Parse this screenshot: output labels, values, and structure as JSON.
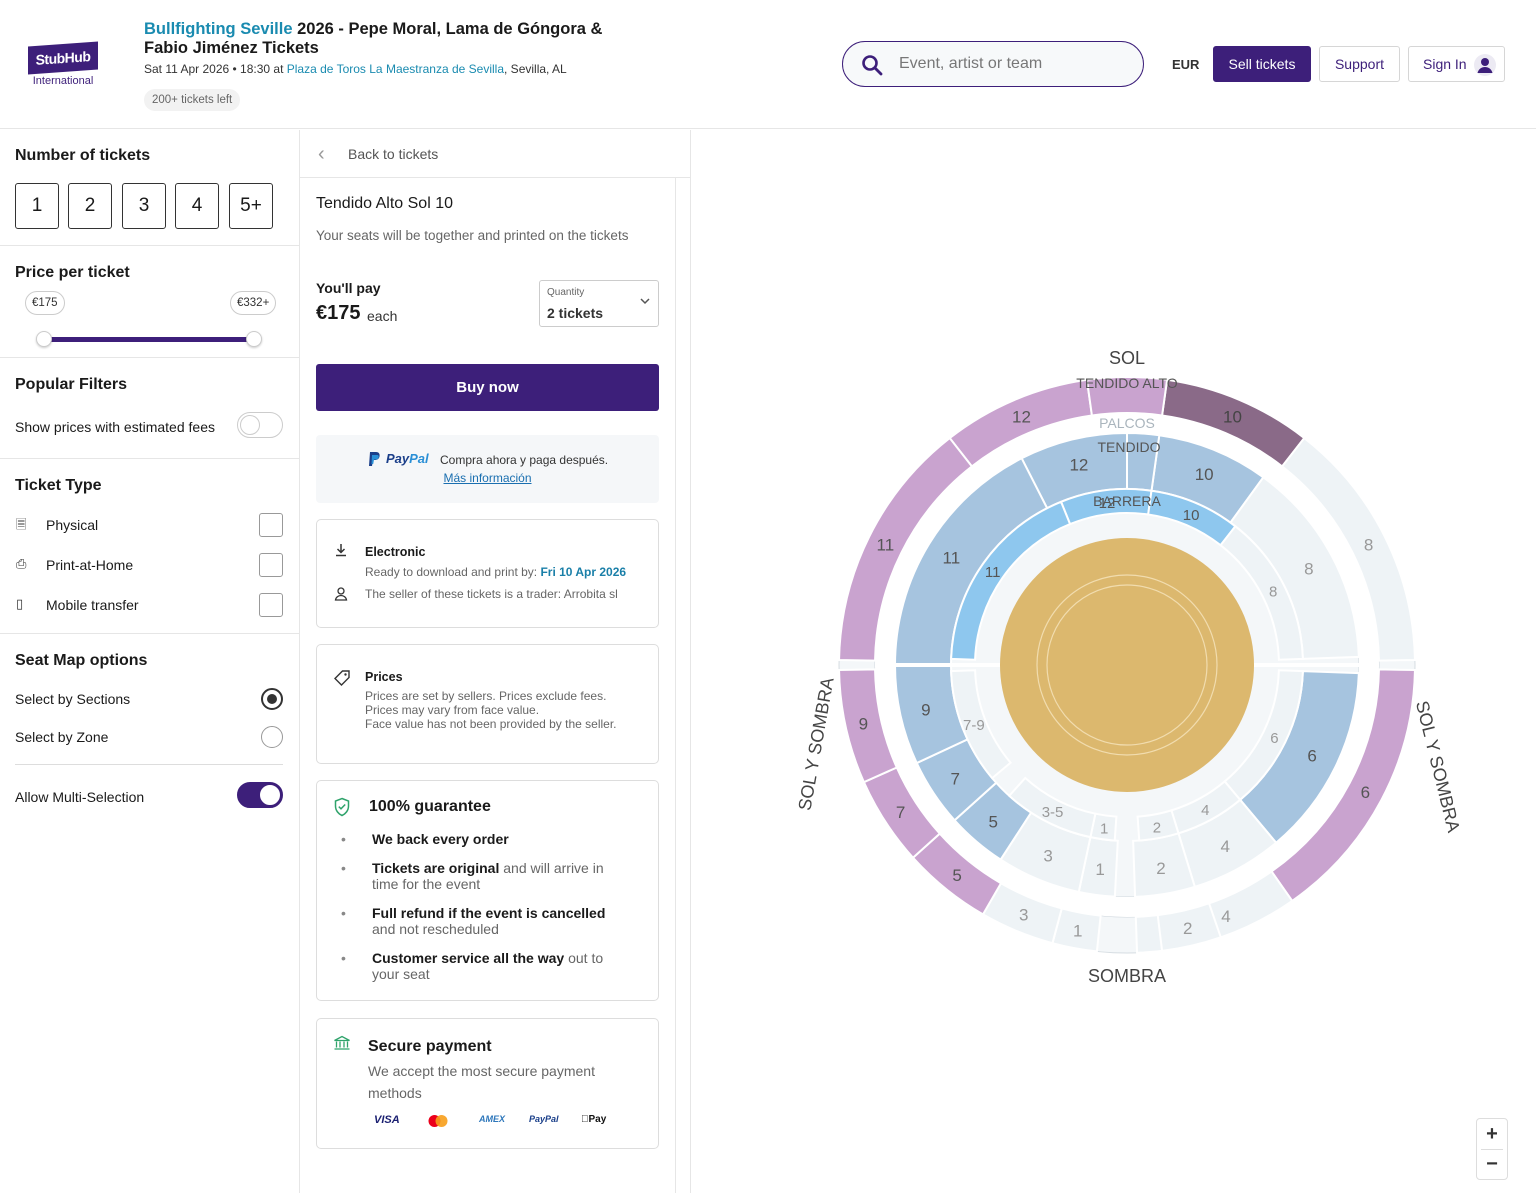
{
  "header": {
    "logo_text": "StubHub",
    "logo_sub": "International",
    "title_link": "Bullfighting Seville",
    "title_rest": " 2026 - Pepe Moral, Lama de Góngora & Fabio Jiménez Tickets",
    "date_time": "Sat 11 Apr 2026 • 18:30 at ",
    "venue_link": "Plaza de Toros La Maestranza de Sevilla",
    "venue_city": ", Sevilla, AL",
    "tickets_left": "200+ tickets left",
    "search_placeholder": "Event, artist or team",
    "currency": "EUR",
    "sell_label": "Sell tickets",
    "support_label": "Support",
    "signin_label": "Sign In"
  },
  "filters": {
    "number_title": "Number of tickets",
    "quantities": [
      "1",
      "2",
      "3",
      "4",
      "5+"
    ],
    "price_title": "Price per ticket",
    "price_min": "€175",
    "price_max": "€332+",
    "popular_title": "Popular Filters",
    "fees_label": "Show prices with estimated fees",
    "ticket_type_title": "Ticket Type",
    "ticket_types": [
      "Physical",
      "Print-at-Home",
      "Mobile transfer"
    ],
    "seatmap_title": "Seat Map options",
    "by_sections": "Select by Sections",
    "by_zone": "Select by Zone",
    "multi_label": "Allow Multi-Selection"
  },
  "listing": {
    "back_label": "Back to tickets",
    "section_name": "Tendido Alto Sol 10",
    "section_note": "Your seats will be together and printed on the tickets",
    "pay_label": "You'll pay",
    "price": "€175",
    "each": "each",
    "quantity_label": "Quantity",
    "quantity_value": "2 tickets",
    "buy_label": "Buy now",
    "paypal_brand_1": "Pay",
    "paypal_brand_2": "Pal",
    "paypal_text": "Compra ahora y paga después.",
    "paypal_more": "Más información",
    "delivery_title": "Electronic",
    "delivery_text": "Ready to download and print by: ",
    "delivery_date": "Fri 10 Apr 2026",
    "seller_text": "The seller of these tickets is a trader: Arrobita sl",
    "prices_title": "Prices",
    "prices_lines": [
      "Prices are set by sellers. Prices exclude fees.",
      "Prices may vary from face value.",
      "Face value has not been provided by the seller."
    ],
    "guarantee_title": "100% guarantee",
    "guarantee_items": [
      {
        "bold": "We back every order",
        "rest": ""
      },
      {
        "bold": "Tickets are original",
        "rest": " and will arrive in time for the event"
      },
      {
        "bold": "Full refund if the event is cancelled",
        "rest": " and not rescheduled"
      },
      {
        "bold": "Customer service all the way",
        "rest": " out to your seat"
      }
    ],
    "secure_title": "Secure payment",
    "secure_text": "We accept the most secure payment methods",
    "pay_methods": [
      "VISA",
      "AMEX",
      "PayPal",
      "Pay"
    ]
  },
  "seatmap": {
    "labels": {
      "top": "SOL",
      "bottom": "SOMBRA",
      "left": "SOL Y SOMBRA",
      "right": "SOL Y SOMBRA"
    },
    "ring_labels": {
      "tendido_alto": "TENDIDO ALTO",
      "palcos": "PALCOS",
      "tendido": "TENDIDO",
      "barrera": "BARRERA"
    },
    "outer_sections": [
      "12",
      "10",
      "8",
      "6",
      "4",
      "2",
      "1",
      "3",
      "5",
      "7",
      "9",
      "11"
    ],
    "tendido_sections": [
      "12",
      "10",
      "8",
      "6",
      "4",
      "2",
      "1",
      "3",
      "5",
      "7",
      "9",
      "11"
    ],
    "barrera_sections": [
      "12",
      "10",
      "8",
      "6",
      "4",
      "2",
      "1",
      "3-5",
      "7-9",
      "11"
    ],
    "zoom_in": "+",
    "zoom_out": "−",
    "colors": {
      "outer_available": "#c9a3cf",
      "outer_selected": "#8a6a88",
      "mid_available": "#a6c4df",
      "barrera_available": "#8ec7ee",
      "unavailable": "#eef3f6",
      "arena": "#dcb86e"
    }
  }
}
